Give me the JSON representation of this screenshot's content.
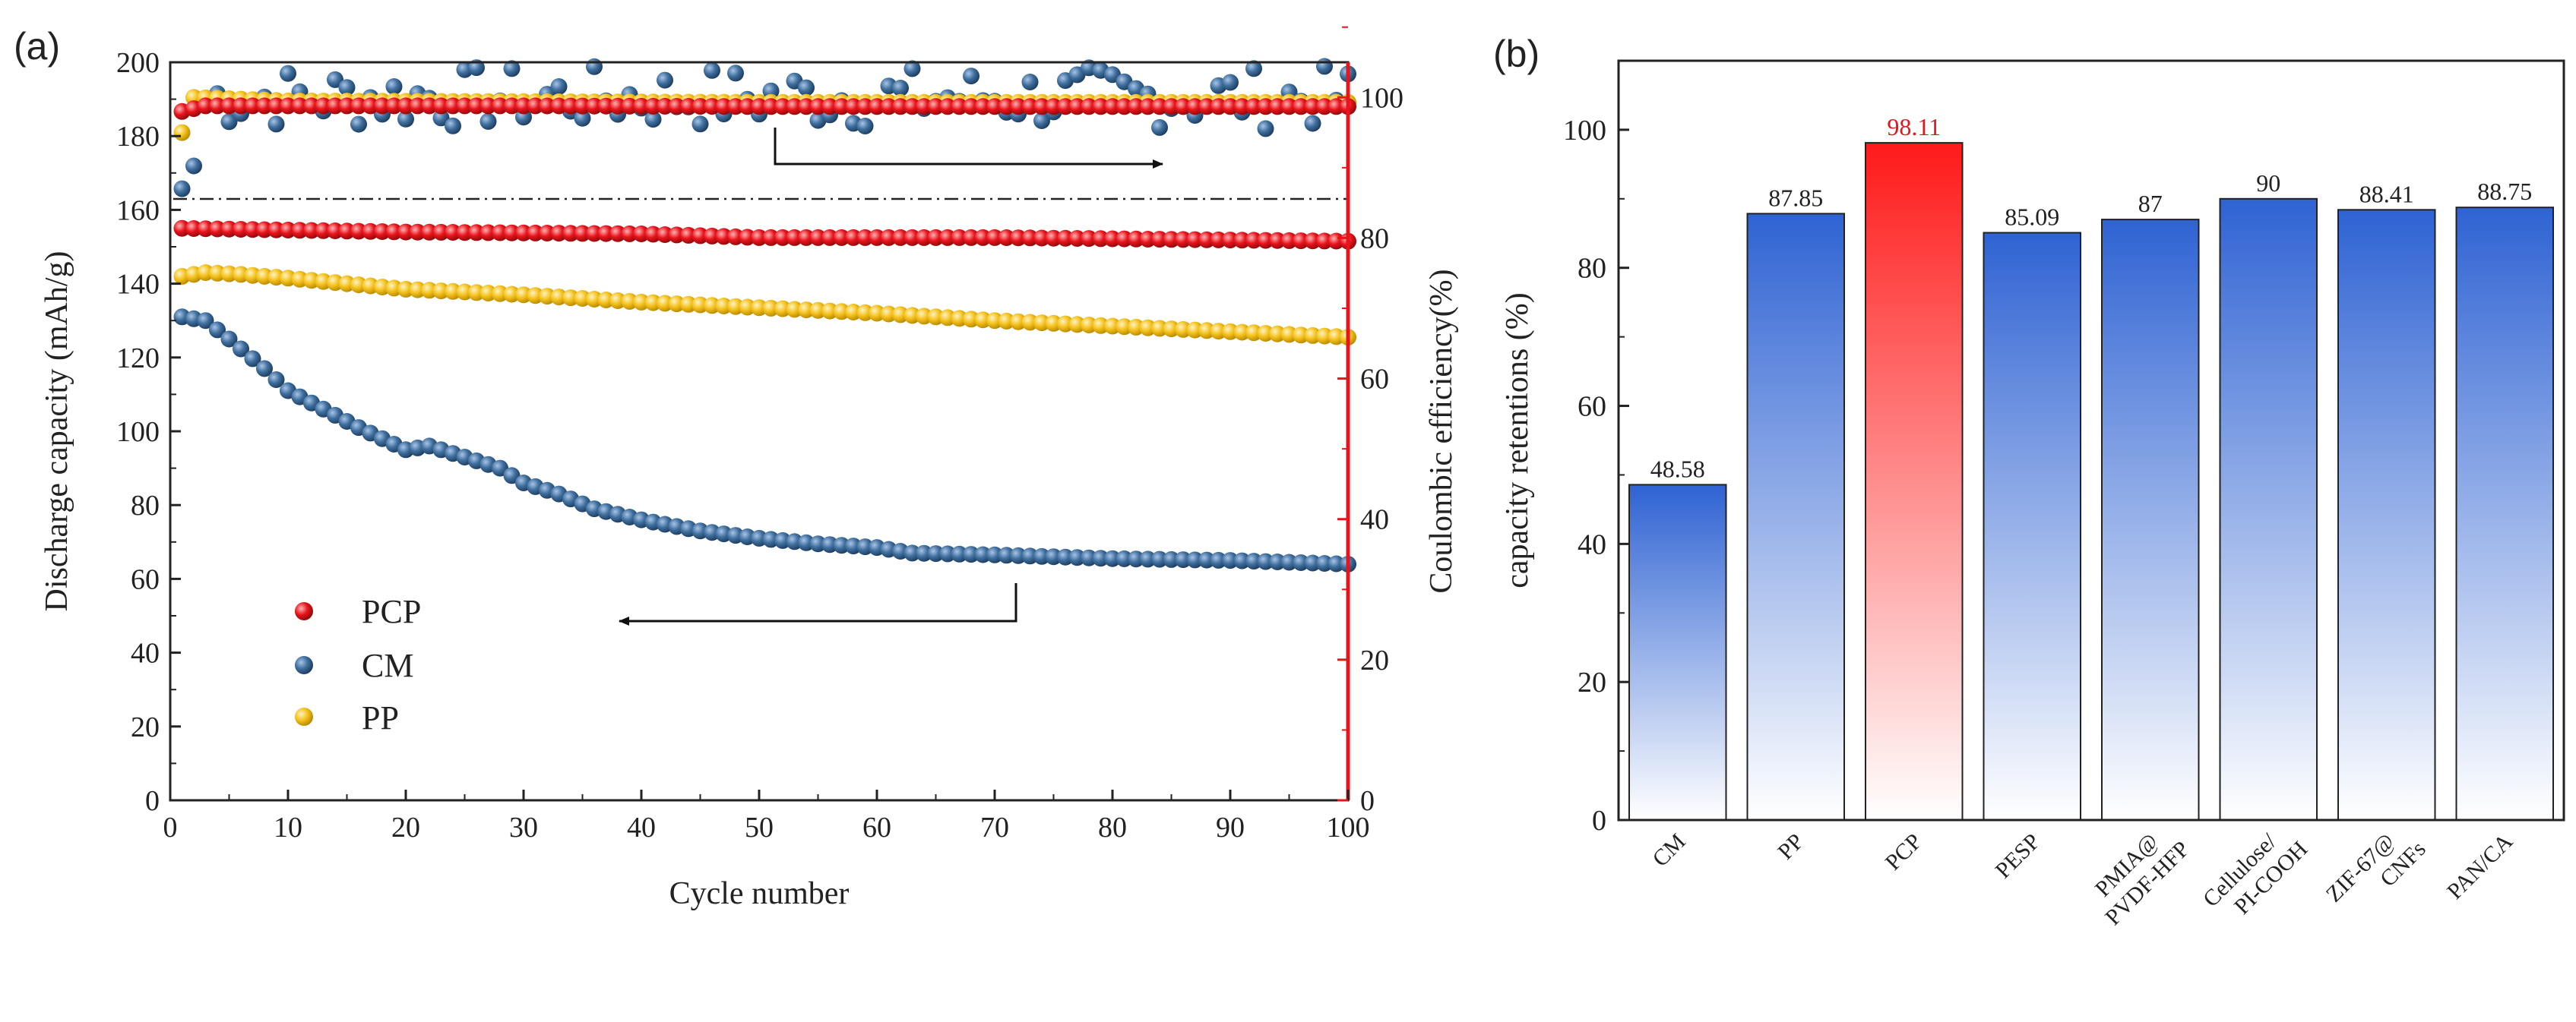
{
  "panel_a_label": "(a)",
  "panel_b_label": "(b)",
  "chart_data": [
    {
      "type": "scatter",
      "panel": "(a)",
      "xlabel": "Cycle number",
      "ylabel": "Discharge capacity (mAh/g)",
      "y2label": "Coulombic efficiency(%)",
      "xlim": [
        0,
        100
      ],
      "ylim": [
        0,
        200
      ],
      "y2lim": [
        0,
        105
      ],
      "xticks": [
        "0",
        "10",
        "20",
        "30",
        "40",
        "50",
        "60",
        "70",
        "80",
        "90",
        "100"
      ],
      "yticks": [
        "0",
        "20",
        "40",
        "60",
        "80",
        "100",
        "120",
        "140",
        "160",
        "180",
        "200"
      ],
      "y2ticks": [
        "0",
        "20",
        "40",
        "60",
        "80",
        "100"
      ],
      "legend_position": "lower-left",
      "series": [
        {
          "name": "PCP",
          "color": "#e8141c",
          "axis": "left",
          "kind": "capacity",
          "points": [
            [
              1,
              155
            ],
            [
              20,
              154
            ],
            [
              40,
              153.5
            ],
            [
              50,
              152.5
            ],
            [
              60,
              152.5
            ],
            [
              70,
              152.5
            ],
            [
              85,
              152
            ],
            [
              100,
              151.5
            ]
          ]
        },
        {
          "name": "CM",
          "color": "#3f6f9e",
          "axis": "left",
          "kind": "capacity",
          "points": [
            [
              1,
              131
            ],
            [
              3,
              130
            ],
            [
              5,
              125
            ],
            [
              8,
              117
            ],
            [
              10,
              111
            ],
            [
              13,
              106
            ],
            [
              16,
              101
            ],
            [
              18,
              98
            ],
            [
              20,
              95
            ],
            [
              22,
              96
            ],
            [
              25,
              93
            ],
            [
              28,
              90
            ],
            [
              30,
              86
            ],
            [
              33,
              83
            ],
            [
              36,
              79
            ],
            [
              40,
              76
            ],
            [
              45,
              73
            ],
            [
              50,
              71
            ],
            [
              55,
              69.5
            ],
            [
              60,
              68.5
            ],
            [
              63,
              67
            ],
            [
              70,
              66.5
            ],
            [
              75,
              66
            ],
            [
              80,
              65.5
            ],
            [
              90,
              65
            ],
            [
              100,
              64
            ]
          ]
        },
        {
          "name": "PP",
          "color": "#f4c11c",
          "axis": "left",
          "kind": "capacity",
          "points": [
            [
              1,
              142
            ],
            [
              3,
              143
            ],
            [
              6,
              142.5
            ],
            [
              10,
              141.5
            ],
            [
              15,
              140
            ],
            [
              20,
              138.5
            ],
            [
              30,
              137
            ],
            [
              40,
              135
            ],
            [
              50,
              133.5
            ],
            [
              60,
              132
            ],
            [
              70,
              130
            ],
            [
              80,
              128.5
            ],
            [
              90,
              127
            ],
            [
              100,
              125.5
            ]
          ]
        },
        {
          "name": "PCP",
          "color": "#e8141c",
          "axis": "right",
          "kind": "efficiency",
          "points": [
            [
              1,
              98
            ],
            [
              3,
              98.8
            ],
            [
              10,
              98.8
            ],
            [
              30,
              98.8
            ],
            [
              50,
              98.7
            ],
            [
              70,
              98.7
            ],
            [
              100,
              98.7
            ]
          ]
        },
        {
          "name": "CM",
          "color": "#3f6f9e",
          "axis": "right",
          "kind": "efficiency",
          "noisy": true,
          "points": [
            [
              1,
              87
            ],
            [
              5,
              100
            ],
            [
              20,
              100
            ],
            [
              50,
              100
            ],
            [
              100,
              100
            ]
          ]
        },
        {
          "name": "PP",
          "color": "#f4c11c",
          "axis": "right",
          "kind": "efficiency",
          "points": [
            [
              1,
              95
            ],
            [
              2,
              100
            ],
            [
              10,
              99.5
            ],
            [
              50,
              99.3
            ],
            [
              100,
              99.3
            ]
          ]
        }
      ],
      "legend": [
        "PCP",
        "CM",
        "PP"
      ]
    },
    {
      "type": "bar",
      "panel": "(b)",
      "ylabel": "capacity retentions (%)",
      "ylim": [
        0,
        110
      ],
      "yticks": [
        "0",
        "20",
        "40",
        "60",
        "80",
        "100"
      ],
      "categories": [
        "CM",
        "PP",
        "PCP",
        "PESP",
        "PMIA@ PVDF-HFP",
        "Cellulose/ PI-COOH",
        "ZIF-67@ CNFs",
        "PAN/CA"
      ],
      "category_lines": [
        [
          "CM"
        ],
        [
          "PP"
        ],
        [
          "PCP"
        ],
        [
          "PESP"
        ],
        [
          "PMIA@",
          "PVDF-HFP"
        ],
        [
          "Cellulose/",
          "PI-COOH"
        ],
        [
          "ZIF-67@",
          "CNFs"
        ],
        [
          "PAN/CA"
        ]
      ],
      "values": [
        48.58,
        87.85,
        98.11,
        85.09,
        87,
        90,
        88.41,
        88.75
      ],
      "value_labels": [
        "48.58",
        "87.85",
        "98.11",
        "85.09",
        "87",
        "90",
        "88.41",
        "88.75"
      ],
      "highlight_index": 2,
      "colors": {
        "bar": "#2f63d3",
        "highlight": "#ff1a1a",
        "highlight_label": "#e8141c",
        "axis": "#222222"
      }
    }
  ]
}
